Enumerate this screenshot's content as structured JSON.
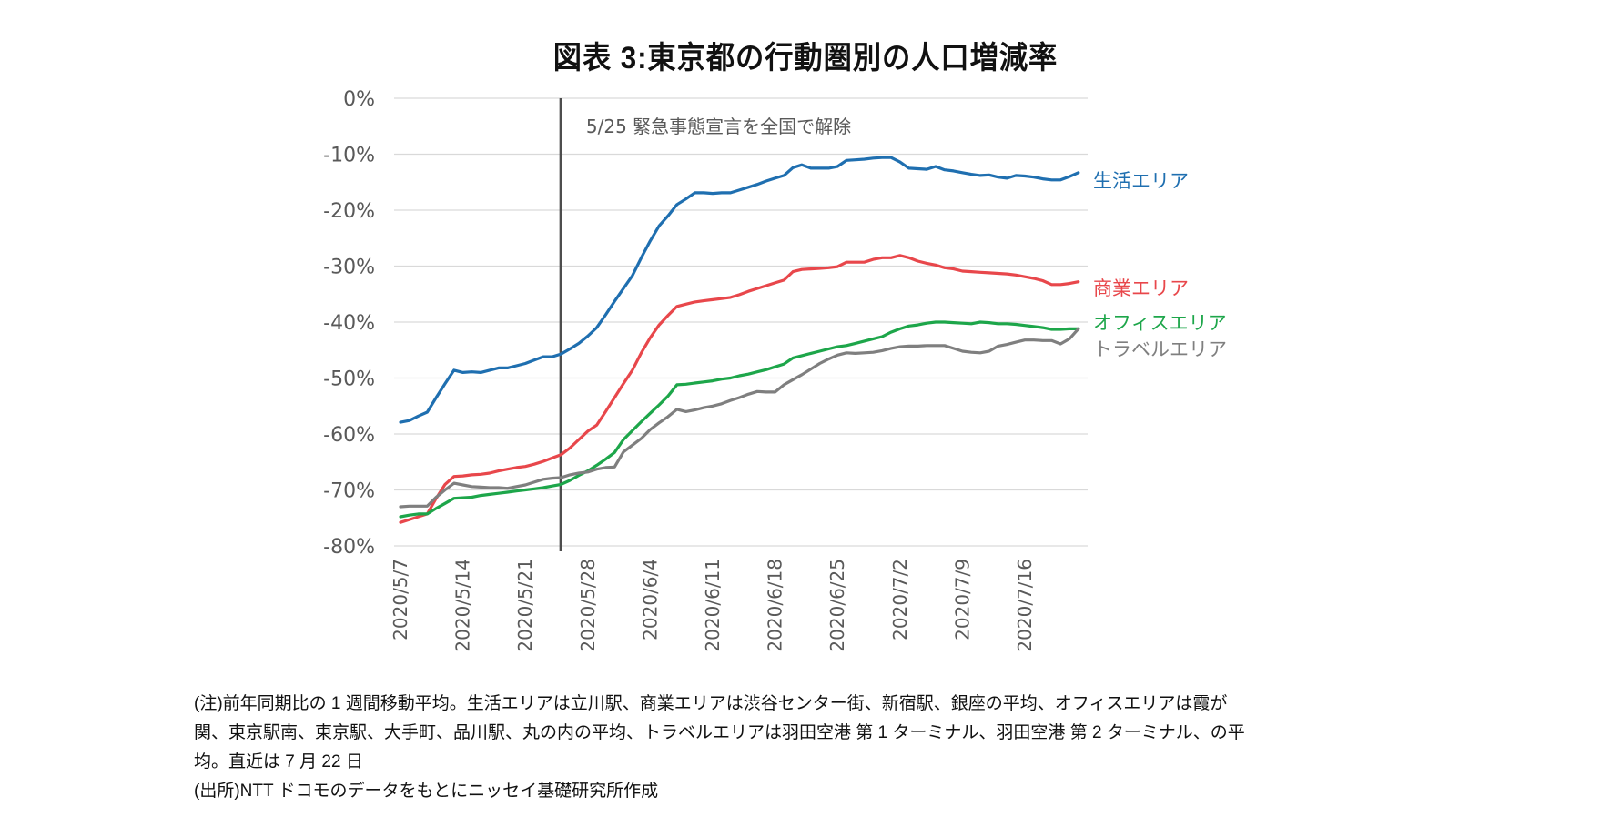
{
  "chart_data": {
    "type": "line",
    "title": "図表 3:東京都の行動圏別の人口増減率",
    "xlabel": "",
    "ylabel": "",
    "ylim": [
      -80,
      0
    ],
    "yticks": [
      "0%",
      "-10%",
      "-20%",
      "-30%",
      "-40%",
      "-50%",
      "-60%",
      "-70%",
      "-80%"
    ],
    "ytick_values": [
      0,
      -10,
      -20,
      -30,
      -40,
      -50,
      -60,
      -70,
      -80
    ],
    "x_start": "2020/5/7",
    "x_end": "2020/7/22",
    "x_days": 77,
    "xticks": [
      "2020/5/7",
      "2020/5/14",
      "2020/5/21",
      "2020/5/28",
      "2020/6/4",
      "2020/6/11",
      "2020/6/18",
      "2020/6/25",
      "2020/7/2",
      "2020/7/9",
      "2020/7/16"
    ],
    "xtick_day_index": [
      0,
      7,
      14,
      21,
      28,
      35,
      42,
      49,
      56,
      63,
      70
    ],
    "grid": true,
    "legend": "right (direct labels at line ends)",
    "annotation": {
      "text": "5/25 緊急事態宣言を全国で解除",
      "day_index": 18
    },
    "series": [
      {
        "name": "生活エリア",
        "color": "#1F6FB0",
        "values": [
          -57.9,
          -57.6,
          -56.8,
          -56.1,
          -53.5,
          -51.0,
          -48.6,
          -49.0,
          -48.9,
          -49.0,
          -48.6,
          -48.2,
          -48.2,
          -47.8,
          -47.4,
          -46.8,
          -46.2,
          -46.2,
          -45.7,
          -44.8,
          -43.8,
          -42.5,
          -41.0,
          -38.7,
          -36.3,
          -34.0,
          -31.7,
          -28.5,
          -25.5,
          -22.8,
          -21.0,
          -19.0,
          -18.0,
          -16.9,
          -16.9,
          -17.0,
          -16.9,
          -16.9,
          -16.4,
          -15.9,
          -15.4,
          -14.8,
          -14.3,
          -13.8,
          -12.4,
          -11.9,
          -12.5,
          -12.5,
          -12.5,
          -12.2,
          -11.1,
          -11.0,
          -10.9,
          -10.7,
          -10.6,
          -10.6,
          -11.4,
          -12.5,
          -12.6,
          -12.7,
          -12.2,
          -12.8,
          -13.0,
          -13.3,
          -13.6,
          -13.8,
          -13.7,
          -14.1,
          -14.3,
          -13.8,
          -13.9,
          -14.1,
          -14.4,
          -14.6,
          -14.6,
          -14.0,
          -13.3
        ]
      },
      {
        "name": "商業エリア",
        "color": "#E8474B",
        "values": [
          -75.8,
          -75.3,
          -74.8,
          -74.3,
          -71.5,
          -69.0,
          -67.6,
          -67.5,
          -67.3,
          -67.2,
          -67.0,
          -66.6,
          -66.3,
          -66.0,
          -65.8,
          -65.4,
          -64.9,
          -64.3,
          -63.7,
          -62.5,
          -61.0,
          -59.5,
          -58.4,
          -56.0,
          -53.5,
          -51.0,
          -48.6,
          -45.5,
          -42.8,
          -40.5,
          -38.8,
          -37.2,
          -36.8,
          -36.4,
          -36.2,
          -36.0,
          -35.8,
          -35.6,
          -35.1,
          -34.5,
          -34.0,
          -33.5,
          -33.0,
          -32.5,
          -31.0,
          -30.6,
          -30.5,
          -30.4,
          -30.3,
          -30.1,
          -29.3,
          -29.3,
          -29.3,
          -28.8,
          -28.5,
          -28.5,
          -28.1,
          -28.5,
          -29.1,
          -29.5,
          -29.8,
          -30.3,
          -30.5,
          -30.9,
          -31.0,
          -31.1,
          -31.2,
          -31.3,
          -31.4,
          -31.6,
          -31.9,
          -32.2,
          -32.6,
          -33.3,
          -33.3,
          -33.1,
          -32.8
        ]
      },
      {
        "name": "オフィスエリア",
        "color": "#1DA64A",
        "values": [
          -74.8,
          -74.5,
          -74.3,
          -74.3,
          -73.3,
          -72.4,
          -71.5,
          -71.4,
          -71.3,
          -71.0,
          -70.8,
          -70.6,
          -70.4,
          -70.2,
          -70.0,
          -69.8,
          -69.6,
          -69.3,
          -69.0,
          -68.3,
          -67.4,
          -66.6,
          -65.6,
          -64.5,
          -63.3,
          -61.0,
          -59.4,
          -57.8,
          -56.3,
          -54.8,
          -53.2,
          -51.2,
          -51.1,
          -50.9,
          -50.7,
          -50.5,
          -50.2,
          -50.0,
          -49.6,
          -49.3,
          -48.9,
          -48.5,
          -48.0,
          -47.5,
          -46.4,
          -46.0,
          -45.6,
          -45.2,
          -44.8,
          -44.4,
          -44.2,
          -43.8,
          -43.4,
          -43.0,
          -42.6,
          -41.8,
          -41.2,
          -40.7,
          -40.5,
          -40.2,
          -40.0,
          -40.0,
          -40.1,
          -40.2,
          -40.3,
          -40.0,
          -40.1,
          -40.3,
          -40.3,
          -40.4,
          -40.6,
          -40.8,
          -41.0,
          -41.3,
          -41.3,
          -41.2,
          -41.2
        ]
      },
      {
        "name": "トラベルエリア",
        "color": "#7F7F7F",
        "values": [
          -73.0,
          -72.9,
          -72.9,
          -72.9,
          -71.3,
          -70.0,
          -68.8,
          -69.1,
          -69.4,
          -69.5,
          -69.6,
          -69.6,
          -69.7,
          -69.4,
          -69.1,
          -68.6,
          -68.1,
          -67.9,
          -67.8,
          -67.3,
          -67.0,
          -66.8,
          -66.3,
          -66.0,
          -65.9,
          -63.2,
          -62.0,
          -60.8,
          -59.2,
          -58.0,
          -56.9,
          -55.6,
          -56.0,
          -55.7,
          -55.3,
          -55.0,
          -54.6,
          -54.0,
          -53.5,
          -52.9,
          -52.4,
          -52.5,
          -52.5,
          -51.2,
          -50.3,
          -49.4,
          -48.4,
          -47.4,
          -46.6,
          -45.9,
          -45.5,
          -45.6,
          -45.5,
          -45.4,
          -45.1,
          -44.7,
          -44.4,
          -44.3,
          -44.3,
          -44.2,
          -44.2,
          -44.2,
          -44.7,
          -45.2,
          -45.4,
          -45.5,
          -45.2,
          -44.3,
          -44.0,
          -43.6,
          -43.2,
          -43.2,
          -43.3,
          -43.3,
          -43.9,
          -43.0,
          -41.2
        ]
      }
    ]
  },
  "notes": {
    "line1": "(注)前年同期比の 1 週間移動平均。生活エリアは立川駅、商業エリアは渋谷センター街、新宿駅、銀座の平均、オフィスエリアは霞が",
    "line2": "関、東京駅南、東京駅、大手町、品川駅、丸の内の平均、トラベルエリアは羽田空港  第 1 ターミナル、羽田空港  第 2 ターミナル、の平",
    "line3": "均。直近は 7 月 22 日",
    "source": "(出所)NTT ドコモのデータをもとにニッセイ基礎研究所作成"
  }
}
